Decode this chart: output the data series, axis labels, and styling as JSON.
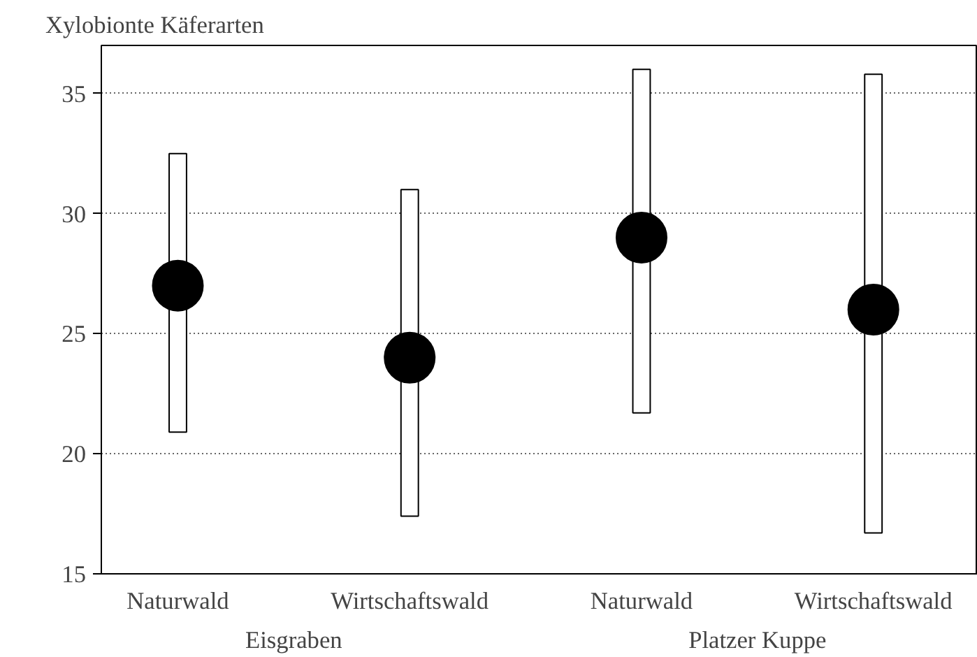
{
  "chart_data": {
    "type": "bar",
    "ylabel": "Xylobionte Käferarten",
    "categories": [
      "Naturwald",
      "Wirtschaftswald",
      "Naturwald",
      "Wirtschaftswald"
    ],
    "series": [
      {
        "color": "#ffffff",
        "base": [
          20.9,
          17.4,
          21.7,
          16.7
        ],
        "values": [
          11.6,
          13.6,
          14.3,
          19.1
        ]
      },
      {
        "type": "scatter",
        "color": "#000000",
        "marker": "circle",
        "values": [
          27,
          24,
          29,
          26
        ]
      }
    ],
    "ylim": [
      15,
      37
    ],
    "yticks": [
      15,
      20,
      25,
      30,
      35
    ],
    "grid": "y",
    "annotations": [
      "Eisgraben",
      "Platzer Kuppe"
    ]
  }
}
